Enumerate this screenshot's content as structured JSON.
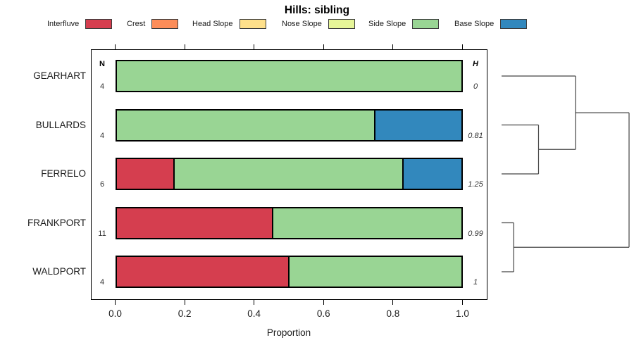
{
  "title": "Hills: sibling",
  "legend": {
    "items": [
      {
        "label": "Interfluve",
        "color": "#d53e4f"
      },
      {
        "label": "Crest",
        "color": "#fc8d59"
      },
      {
        "label": "Head Slope",
        "color": "#fee08b"
      },
      {
        "label": "Nose Slope",
        "color": "#e6f598"
      },
      {
        "label": "Side Slope",
        "color": "#99d594"
      },
      {
        "label": "Base Slope",
        "color": "#3288bd"
      }
    ]
  },
  "chart_data": {
    "type": "bar",
    "orientation": "horizontal",
    "stacked": true,
    "title": "Hills: sibling",
    "xlabel": "Proportion",
    "xlim": [
      0,
      1
    ],
    "xticks": [
      "0.0",
      "0.2",
      "0.4",
      "0.6",
      "0.8",
      "1.0"
    ],
    "grid": false,
    "legend_position": "top",
    "classes": [
      "Interfluve",
      "Crest",
      "Head Slope",
      "Nose Slope",
      "Side Slope",
      "Base Slope"
    ],
    "categories": [
      "GEARHART",
      "BULLARDS",
      "FERRELO",
      "FRANKPORT",
      "WALDPORT"
    ],
    "n_header": "N",
    "h_header": "H",
    "rows": [
      {
        "name": "GEARHART",
        "n": 4,
        "h": "0",
        "segments": [
          {
            "class": "Side Slope",
            "value": 1.0
          }
        ]
      },
      {
        "name": "BULLARDS",
        "n": 4,
        "h": "0.81",
        "segments": [
          {
            "class": "Side Slope",
            "value": 0.75
          },
          {
            "class": "Base Slope",
            "value": 0.25
          }
        ]
      },
      {
        "name": "FERRELO",
        "n": 6,
        "h": "1.25",
        "segments": [
          {
            "class": "Interfluve",
            "value": 0.1667
          },
          {
            "class": "Side Slope",
            "value": 0.6666
          },
          {
            "class": "Base Slope",
            "value": 0.1667
          }
        ]
      },
      {
        "name": "FRANKPORT",
        "n": 11,
        "h": "0.99",
        "segments": [
          {
            "class": "Interfluve",
            "value": 0.4545
          },
          {
            "class": "Side Slope",
            "value": 0.5455
          }
        ]
      },
      {
        "name": "WALDPORT",
        "n": 4,
        "h": "1",
        "segments": [
          {
            "class": "Interfluve",
            "value": 0.5
          },
          {
            "class": "Side Slope",
            "value": 0.5
          }
        ]
      }
    ],
    "dendrogram": {
      "tree": {
        "height": 1.0,
        "children": [
          {
            "height": 0.58,
            "children": [
              {
                "leaf": "GEARHART"
              },
              {
                "height": 0.29,
                "children": [
                  {
                    "leaf": "BULLARDS"
                  },
                  {
                    "leaf": "FERRELO"
                  }
                ]
              }
            ]
          },
          {
            "height": 0.095,
            "children": [
              {
                "leaf": "FRANKPORT"
              },
              {
                "leaf": "WALDPORT"
              }
            ]
          }
        ]
      }
    }
  }
}
